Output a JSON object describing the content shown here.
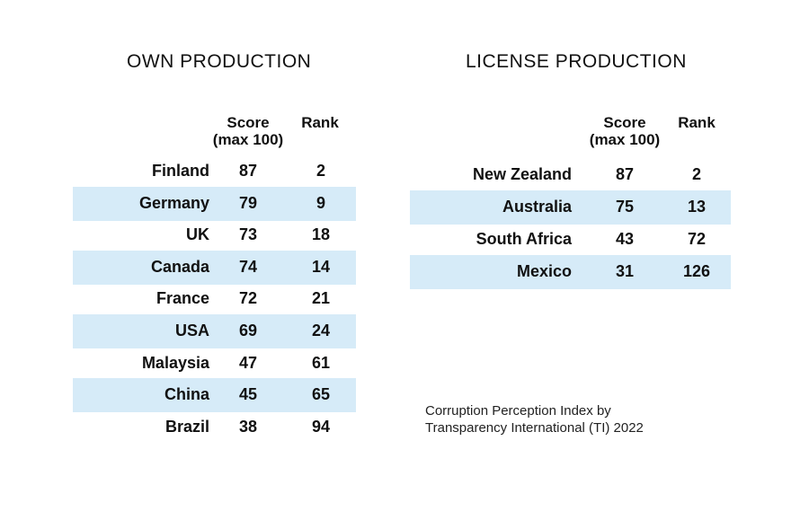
{
  "own": {
    "title": "OWN PRODUCTION",
    "score_header": [
      "Score",
      "(max 100)"
    ],
    "rank_header": "Rank",
    "rows": [
      {
        "country": "Finland",
        "score": "87",
        "rank": "2",
        "shaded": false
      },
      {
        "country": "Germany",
        "score": "79",
        "rank": "9",
        "shaded": true
      },
      {
        "country": "UK",
        "score": "73",
        "rank": "18",
        "shaded": false
      },
      {
        "country": "Canada",
        "score": "74",
        "rank": "14",
        "shaded": true
      },
      {
        "country": "France",
        "score": "72",
        "rank": "21",
        "shaded": false
      },
      {
        "country": "USA",
        "score": "69",
        "rank": "24",
        "shaded": true
      },
      {
        "country": "Malaysia",
        "score": "47",
        "rank": "61",
        "shaded": false
      },
      {
        "country": "China",
        "score": "45",
        "rank": "65",
        "shaded": true
      },
      {
        "country": "Brazil",
        "score": "38",
        "rank": "94",
        "shaded": false
      }
    ]
  },
  "license": {
    "title": "LICENSE PRODUCTION",
    "score_header": [
      "Score",
      "(max 100)"
    ],
    "rank_header": "Rank",
    "rows": [
      {
        "country": "New Zealand",
        "score": "87",
        "rank": "2",
        "shaded": false
      },
      {
        "country": "Australia",
        "score": "75",
        "rank": "13",
        "shaded": true
      },
      {
        "country": "South Africa",
        "score": "43",
        "rank": "72",
        "shaded": false
      },
      {
        "country": "Mexico",
        "score": "31",
        "rank": "126",
        "shaded": true
      }
    ]
  },
  "note": [
    "Corruption Perception Index by",
    "Transparency International (TI) 2022"
  ]
}
